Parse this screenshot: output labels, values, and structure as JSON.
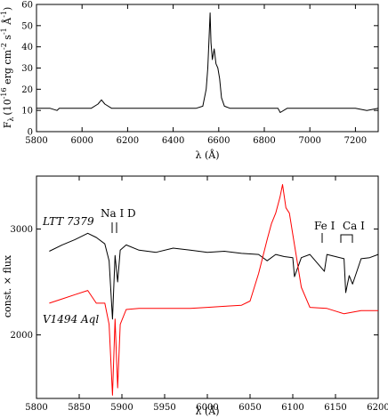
{
  "chart_data": [
    {
      "type": "line",
      "title": "",
      "xlabel": "λ (Å)",
      "ylabel": "F",
      "ylabel_sub": "λ",
      "ylabel_units": "(10",
      "ylabel_exp": "-16",
      "ylabel_units2": " erg cm",
      "ylabel_exp2": "-2",
      "ylabel_units3": " s",
      "ylabel_exp3": "-1",
      "ylabel_units4": " Å",
      "ylabel_exp4": "-1",
      "ylabel_units5": ")",
      "xlim": [
        5800,
        7300
      ],
      "ylim": [
        0,
        60
      ],
      "xticks": [
        5800,
        6000,
        6200,
        6400,
        6600,
        6800,
        7000,
        7200
      ],
      "yticks": [
        0,
        10,
        20,
        30,
        40,
        50,
        60
      ],
      "series": [
        {
          "color": "#000000",
          "x": [
            5800,
            5860,
            5890,
            5900,
            5950,
            6000,
            6040,
            6070,
            6085,
            6100,
            6130,
            6200,
            6300,
            6400,
            6500,
            6530,
            6545,
            6552,
            6558,
            6562,
            6566,
            6572,
            6580,
            6588,
            6596,
            6604,
            6612,
            6625,
            6650,
            6700,
            6800,
            6860,
            6870,
            6900,
            7000,
            7100,
            7200,
            7250,
            7300
          ],
          "y": [
            11,
            11,
            10,
            11,
            11,
            11,
            11,
            13,
            15,
            13,
            11,
            11,
            11,
            11,
            11,
            12,
            20,
            30,
            45,
            56,
            42,
            34,
            39,
            32,
            30,
            25,
            16,
            12,
            11,
            11,
            11,
            11,
            9,
            11,
            11,
            11,
            11,
            10,
            11
          ]
        }
      ]
    },
    {
      "type": "line",
      "title": "",
      "xlabel": "λ (Å)",
      "ylabel": "const. × flux",
      "xlim": [
        5800,
        6200
      ],
      "ylim": [
        1400,
        3500
      ],
      "xticks": [
        5800,
        5850,
        5900,
        5950,
        6000,
        6050,
        6100,
        6150,
        6200
      ],
      "yticks": [
        2000,
        3000
      ],
      "annotations": [
        "Na I D",
        "Fe I",
        "Ca I"
      ],
      "series": [
        {
          "name": "LTT 7379",
          "color": "#000000",
          "x": [
            5815,
            5830,
            5845,
            5860,
            5870,
            5880,
            5885,
            5889,
            5892,
            5895,
            5898,
            5905,
            5920,
            5940,
            5960,
            5980,
            6000,
            6020,
            6040,
            6060,
            6070,
            6080,
            6090,
            6100,
            6102,
            6110,
            6120,
            6137,
            6140,
            6150,
            6160,
            6162,
            6166,
            6170,
            6180,
            6190,
            6200
          ],
          "y": [
            2790,
            2850,
            2900,
            2960,
            2920,
            2860,
            2700,
            2150,
            2750,
            2500,
            2800,
            2850,
            2800,
            2780,
            2820,
            2800,
            2780,
            2790,
            2770,
            2760,
            2700,
            2760,
            2740,
            2730,
            2550,
            2730,
            2760,
            2600,
            2760,
            2740,
            2720,
            2400,
            2560,
            2480,
            2720,
            2730,
            2760
          ]
        },
        {
          "name": "V1494 Aql",
          "color": "#ff0000",
          "x": [
            5815,
            5830,
            5845,
            5860,
            5870,
            5880,
            5885,
            5889,
            5892,
            5895,
            5898,
            5905,
            5920,
            5950,
            5980,
            6000,
            6020,
            6040,
            6050,
            6060,
            6070,
            6075,
            6080,
            6085,
            6088,
            6092,
            6096,
            6100,
            6105,
            6110,
            6120,
            6140,
            6160,
            6180,
            6200
          ],
          "y": [
            2300,
            2340,
            2380,
            2420,
            2300,
            2300,
            2100,
            1430,
            2150,
            1500,
            2100,
            2240,
            2250,
            2250,
            2250,
            2260,
            2270,
            2280,
            2320,
            2580,
            2900,
            3050,
            3150,
            3300,
            3420,
            3200,
            3150,
            2950,
            2700,
            2450,
            2260,
            2250,
            2200,
            2230,
            2230
          ]
        }
      ]
    }
  ]
}
